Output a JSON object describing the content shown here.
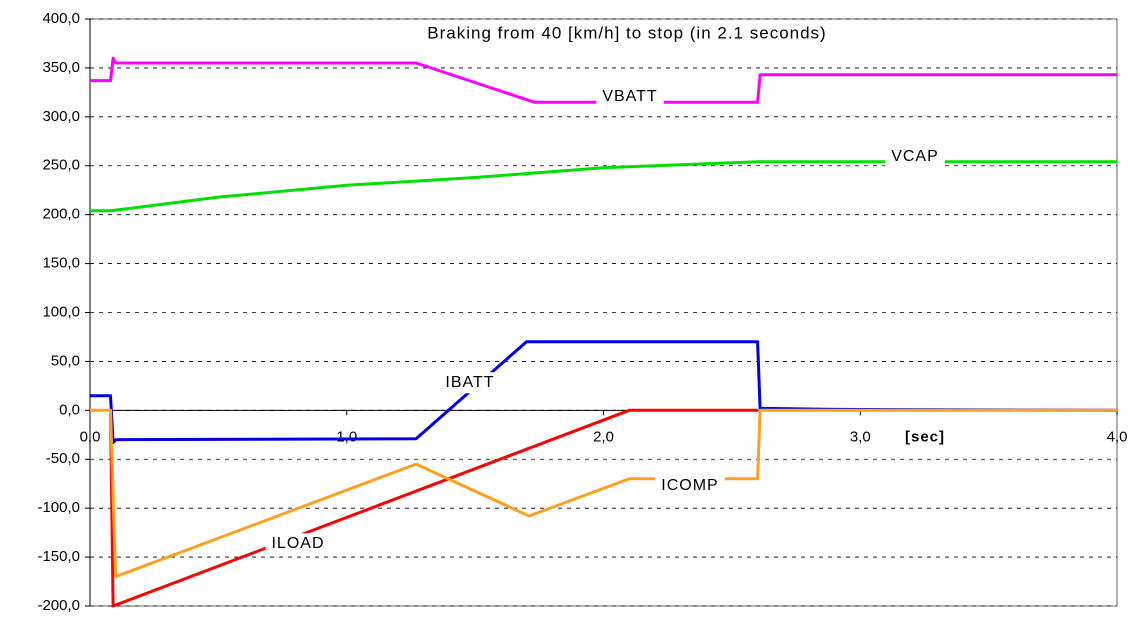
{
  "chart_data": {
    "type": "line",
    "title": "Braking from 40 [km/h] to stop  (in 2.1 seconds)",
    "x_label": "[sec]",
    "xlim": [
      0,
      4
    ],
    "ylim": [
      -200,
      400
    ],
    "xticks": [
      {
        "value": 0,
        "label": "0,0"
      },
      {
        "value": 1,
        "label": "1,0"
      },
      {
        "value": 2,
        "label": "2,0"
      },
      {
        "value": 3,
        "label": "3,0"
      },
      {
        "value": 4,
        "label": "4,0"
      }
    ],
    "yticks": [
      {
        "value": -200,
        "label": "-200,0"
      },
      {
        "value": -150,
        "label": "-150,0"
      },
      {
        "value": -100,
        "label": "-100,0"
      },
      {
        "value": -50,
        "label": "-50,0"
      },
      {
        "value": 0,
        "label": "0,0"
      },
      {
        "value": 50,
        "label": "50,0"
      },
      {
        "value": 100,
        "label": "100,0"
      },
      {
        "value": 150,
        "label": "150,0"
      },
      {
        "value": 200,
        "label": "200,0"
      },
      {
        "value": 250,
        "label": "250,0"
      },
      {
        "value": 300,
        "label": "300,0"
      },
      {
        "value": 350,
        "label": "350,0"
      },
      {
        "value": 400,
        "label": "400,0"
      }
    ],
    "grid": true,
    "series": [
      {
        "name": "VBATT",
        "color": "#ff00ff",
        "x": [
          0,
          0.08,
          0.09,
          0.1,
          1.27,
          1.73,
          2.6,
          2.61,
          4.0
        ],
        "values": [
          337,
          337,
          360,
          355,
          355,
          315,
          315,
          343,
          343
        ]
      },
      {
        "name": "VCAP",
        "color": "#00e000",
        "x": [
          0,
          0.08,
          0.5,
          1.0,
          1.5,
          2.0,
          2.6,
          4.0
        ],
        "values": [
          204,
          204,
          218,
          230,
          238,
          248,
          254,
          254
        ]
      },
      {
        "name": "IBATT",
        "color": "#0000e0",
        "x": [
          0,
          0.08,
          0.09,
          0.1,
          1.27,
          1.7,
          2.6,
          2.61,
          2.9,
          4.0
        ],
        "values": [
          15,
          15,
          -33,
          -30,
          -29,
          70,
          70,
          2,
          1,
          0
        ]
      },
      {
        "name": "ILOAD",
        "color": "#ff0000",
        "x": [
          0.08,
          0.09,
          2.1,
          2.6
        ],
        "values": [
          0,
          -200,
          0,
          0
        ]
      },
      {
        "name": "ICOMP",
        "color": "#ffa020",
        "x": [
          0,
          0.08,
          0.1,
          1.27,
          1.71,
          2.1,
          2.6,
          2.61,
          4.0
        ],
        "values": [
          0,
          0,
          -170,
          -55,
          -108,
          -70,
          -70,
          0,
          0
        ]
      }
    ]
  }
}
